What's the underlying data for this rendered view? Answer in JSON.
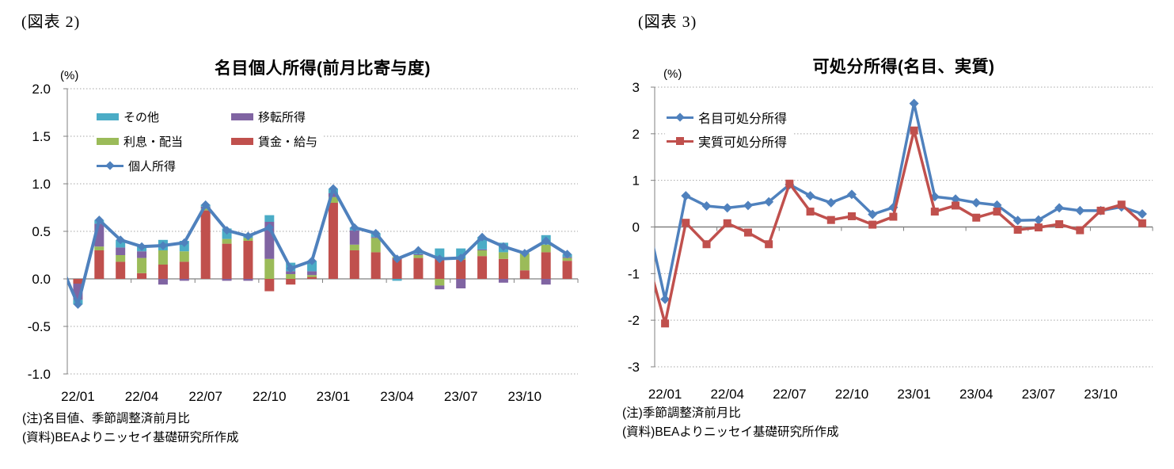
{
  "chart_data": [
    {
      "id": "figure2",
      "figure_label": "(図表 2)",
      "title": "名目個人所得(前月比寄与度)",
      "unit_label": "(%)",
      "type": "stacked-bar+line",
      "categories": [
        "22/01",
        "22/02",
        "22/03",
        "22/04",
        "22/05",
        "22/06",
        "22/07",
        "22/08",
        "22/09",
        "22/10",
        "22/11",
        "22/12",
        "23/01",
        "23/02",
        "23/03",
        "23/04",
        "23/05",
        "23/06",
        "23/07",
        "23/08",
        "23/09",
        "23/10",
        "23/11",
        "23/12"
      ],
      "x_tick_labels": [
        "22/01",
        "22/04",
        "22/07",
        "22/10",
        "23/01",
        "23/04",
        "23/07",
        "23/10"
      ],
      "x_tick_step": 3,
      "y_ticks": [
        "2.0",
        "1.5",
        "1.0",
        "0.5",
        "0.0",
        "-0.5",
        "-1.0"
      ],
      "ylim": [
        -1.0,
        2.0
      ],
      "grid": "dotted horizontal gridlines, solid zero axis",
      "legend_position": "top-left inside plot",
      "bar_series": [
        {
          "key": "wage-salary",
          "name": "賃金・給与",
          "color": "#C0504D",
          "values": [
            -0.05,
            0.3,
            0.18,
            0.06,
            0.15,
            0.18,
            0.72,
            0.37,
            0.4,
            -0.13,
            -0.06,
            0.02,
            0.8,
            0.3,
            0.28,
            0.22,
            0.22,
            0.22,
            0.2,
            0.24,
            0.21,
            0.09,
            0.28,
            0.19
          ]
        },
        {
          "key": "interest-dividend",
          "name": "利息・配当",
          "color": "#9BBB59",
          "values": [
            0.0,
            0.04,
            0.07,
            0.16,
            0.15,
            0.11,
            0.02,
            0.05,
            0.03,
            0.21,
            0.05,
            0.02,
            0.06,
            0.06,
            0.15,
            0.01,
            0.03,
            -0.07,
            0.02,
            0.06,
            0.07,
            0.18,
            0.08,
            0.03
          ]
        },
        {
          "key": "transfer-income",
          "name": "移転所得",
          "color": "#8064A2",
          "values": [
            -0.17,
            0.24,
            0.08,
            0.07,
            -0.06,
            -0.02,
            0.02,
            -0.02,
            -0.02,
            0.39,
            0.03,
            0.04,
            0.04,
            0.15,
            0.01,
            0.0,
            0.01,
            -0.04,
            -0.1,
            0.01,
            -0.04,
            0.0,
            -0.06,
            0.01
          ]
        },
        {
          "key": "other",
          "name": "その他",
          "color": "#4BACC6",
          "values": [
            -0.05,
            0.04,
            0.08,
            0.05,
            0.11,
            0.11,
            0.02,
            0.11,
            0.04,
            0.07,
            0.09,
            0.11,
            0.05,
            0.03,
            0.04,
            -0.02,
            0.04,
            0.1,
            0.1,
            0.13,
            0.1,
            0.0,
            0.1,
            0.03
          ]
        }
      ],
      "line_series": [
        {
          "key": "personal-income",
          "name": "個人所得",
          "color": "#4F81BD",
          "marker": "diamond",
          "prev_point": {
            "category": "21/12",
            "value": 0.25
          },
          "values": [
            -0.27,
            0.62,
            0.41,
            0.34,
            0.35,
            0.38,
            0.78,
            0.51,
            0.45,
            0.54,
            0.11,
            0.19,
            0.95,
            0.54,
            0.48,
            0.21,
            0.3,
            0.21,
            0.22,
            0.44,
            0.34,
            0.27,
            0.4,
            0.26
          ]
        }
      ],
      "notes": [
        "(注)名目値、季節調整済前月比",
        "(資料)BEAよりニッセイ基礎研究所作成"
      ]
    },
    {
      "id": "figure3",
      "figure_label": "(図表 3)",
      "title": "可処分所得(名目、実質)",
      "unit_label": "(%)",
      "type": "line",
      "categories": [
        "22/01",
        "22/02",
        "22/03",
        "22/04",
        "22/05",
        "22/06",
        "22/07",
        "22/08",
        "22/09",
        "22/10",
        "22/11",
        "22/12",
        "23/01",
        "23/02",
        "23/03",
        "23/04",
        "23/05",
        "23/06",
        "23/07",
        "23/08",
        "23/09",
        "23/10",
        "23/11",
        "23/12"
      ],
      "x_tick_labels": [
        "22/01",
        "22/04",
        "22/07",
        "22/10",
        "23/01",
        "23/04",
        "23/07",
        "23/10"
      ],
      "x_tick_step": 3,
      "y_ticks": [
        "3",
        "2",
        "1",
        "0",
        "-1",
        "-2",
        "-3"
      ],
      "ylim": [
        -3,
        3
      ],
      "grid": "dotted horizontal gridlines, solid zero axis",
      "legend_position": "top-left inside plot",
      "bar_series": [],
      "line_series": [
        {
          "key": "nominal-disposable-income",
          "name": "名目可処分所得",
          "color": "#4F81BD",
          "marker": "diamond",
          "prev_point": {
            "category": "21/12",
            "value": 0.45
          },
          "values": [
            -1.55,
            0.67,
            0.45,
            0.41,
            0.46,
            0.54,
            0.91,
            0.67,
            0.52,
            0.7,
            0.27,
            0.42,
            2.65,
            0.65,
            0.6,
            0.52,
            0.47,
            0.14,
            0.15,
            0.41,
            0.35,
            0.35,
            0.43,
            0.28
          ]
        },
        {
          "key": "real-disposable-income",
          "name": "実質可処分所得",
          "color": "#C0504D",
          "marker": "square",
          "prev_point": {
            "category": "21/12",
            "value": -0.43
          },
          "values": [
            -2.07,
            0.09,
            -0.37,
            0.08,
            -0.12,
            -0.37,
            0.93,
            0.33,
            0.15,
            0.23,
            0.05,
            0.22,
            2.07,
            0.33,
            0.46,
            0.2,
            0.33,
            -0.06,
            -0.01,
            0.06,
            -0.07,
            0.35,
            0.48,
            0.08
          ]
        }
      ],
      "notes": [
        "(注)季節調整済前月比",
        "(資料)BEAよりニッセイ基礎研究所作成"
      ]
    }
  ],
  "style_colors": {
    "gridline": "#A6A6A6",
    "axis": "#808080",
    "text": "#000000"
  }
}
